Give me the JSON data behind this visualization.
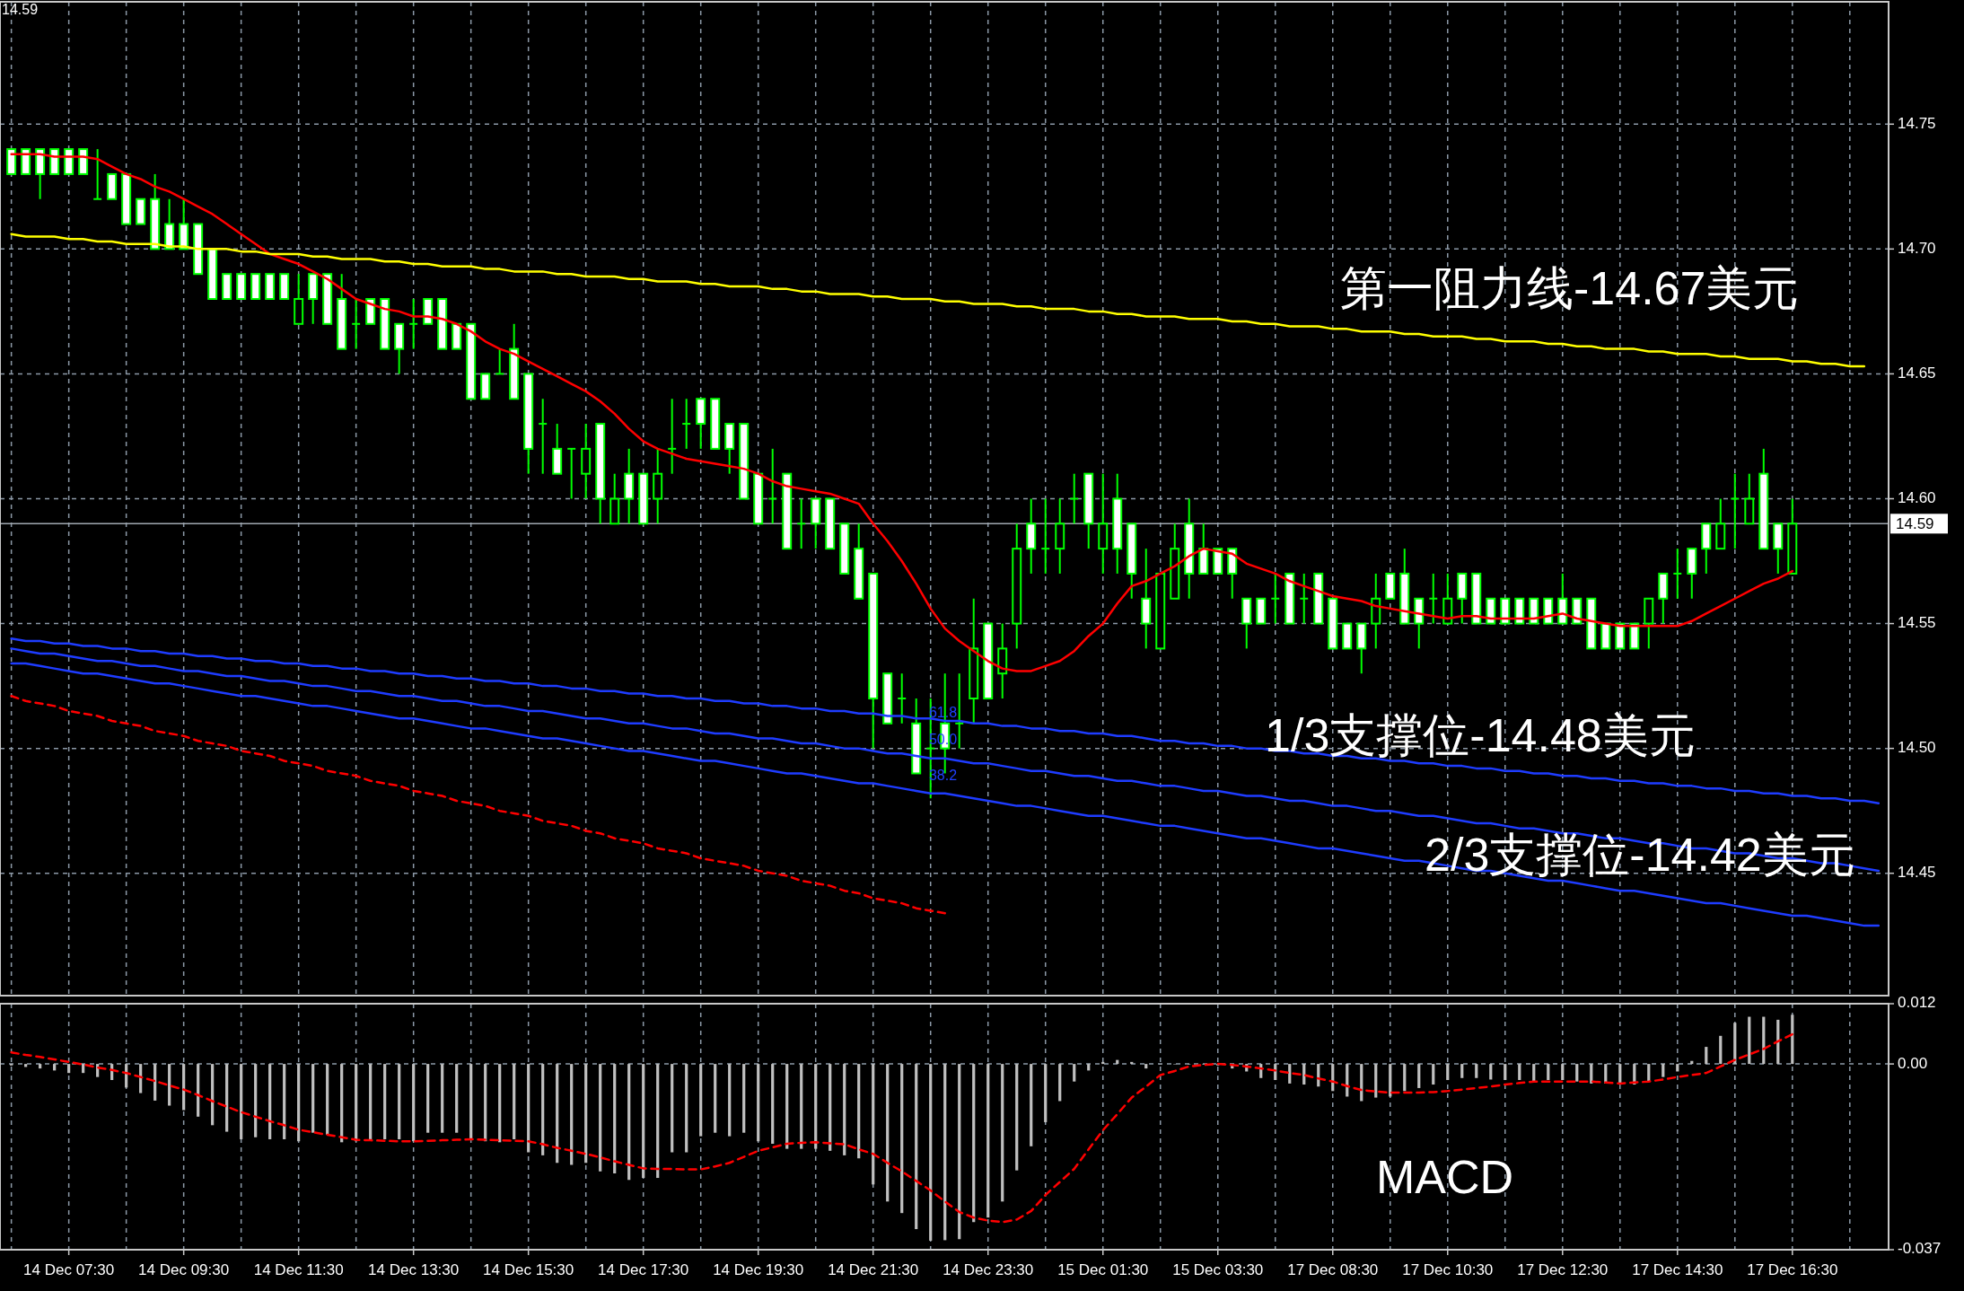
{
  "chart_data": [
    {
      "type": "candlestick",
      "title": "14.59",
      "color": "#00ff00",
      "categories": [
        null,
        null,
        null,
        null,
        null,
        null,
        null,
        null,
        null,
        null,
        null,
        null,
        null,
        null,
        null,
        null,
        null,
        null,
        null,
        null,
        null,
        null,
        null,
        null,
        null,
        null,
        null,
        null,
        null,
        null,
        null,
        null,
        null,
        null,
        null,
        null,
        null,
        null,
        null,
        null,
        null,
        null,
        null,
        null,
        null,
        null,
        null,
        null,
        null,
        null,
        null,
        null,
        null,
        null,
        null,
        null,
        null,
        null,
        null,
        null,
        null,
        null,
        null,
        null,
        null,
        null,
        null,
        null,
        null,
        null,
        null,
        null,
        null,
        null,
        null,
        null,
        null,
        null,
        null,
        null,
        null,
        null,
        null,
        null,
        null,
        null,
        null,
        null,
        null,
        null,
        null,
        null,
        null,
        null,
        null,
        null,
        null,
        null,
        null,
        null,
        null,
        null,
        null,
        null,
        null,
        null,
        null,
        null,
        null,
        null,
        null,
        null,
        null,
        null,
        null,
        null,
        null,
        null,
        null,
        null,
        null,
        null,
        null,
        null,
        null,
        null,
        null,
        null,
        null,
        null,
        null
      ],
      "ohlc": [
        [
          14.74,
          14.74,
          14.73,
          14.73
        ],
        [
          14.74,
          14.74,
          14.73,
          14.73
        ],
        [
          14.74,
          14.74,
          14.72,
          14.73
        ],
        [
          14.74,
          14.74,
          14.73,
          14.73
        ],
        [
          14.74,
          14.74,
          14.73,
          14.73
        ],
        [
          14.74,
          14.74,
          14.73,
          14.73
        ],
        [
          14.72,
          14.74,
          14.72,
          14.72
        ],
        [
          14.73,
          14.73,
          14.72,
          14.72
        ],
        [
          14.73,
          14.73,
          14.71,
          14.71
        ],
        [
          14.72,
          14.72,
          14.71,
          14.71
        ],
        [
          14.72,
          14.73,
          14.7,
          14.7
        ],
        [
          14.71,
          14.72,
          14.7,
          14.7
        ],
        [
          14.71,
          14.72,
          14.7,
          14.7
        ],
        [
          14.71,
          14.71,
          14.69,
          14.69
        ],
        [
          14.7,
          14.7,
          14.68,
          14.68
        ],
        [
          14.69,
          14.69,
          14.68,
          14.68
        ],
        [
          14.69,
          14.69,
          14.68,
          14.68
        ],
        [
          14.69,
          14.69,
          14.68,
          14.68
        ],
        [
          14.69,
          14.69,
          14.68,
          14.68
        ],
        [
          14.69,
          14.69,
          14.68,
          14.68
        ],
        [
          14.67,
          14.69,
          14.67,
          14.68
        ],
        [
          14.69,
          14.69,
          14.67,
          14.68
        ],
        [
          14.69,
          14.69,
          14.67,
          14.67
        ],
        [
          14.68,
          14.69,
          14.66,
          14.66
        ],
        [
          14.67,
          14.68,
          14.66,
          14.67
        ],
        [
          14.68,
          14.68,
          14.67,
          14.67
        ],
        [
          14.68,
          14.68,
          14.66,
          14.66
        ],
        [
          14.67,
          14.67,
          14.65,
          14.66
        ],
        [
          14.67,
          14.68,
          14.66,
          14.67
        ],
        [
          14.68,
          14.68,
          14.67,
          14.67
        ],
        [
          14.68,
          14.68,
          14.66,
          14.66
        ],
        [
          14.67,
          14.67,
          14.66,
          14.66
        ],
        [
          14.67,
          14.67,
          14.64,
          14.64
        ],
        [
          14.65,
          14.65,
          14.64,
          14.64
        ],
        [
          14.65,
          14.66,
          14.65,
          14.65
        ],
        [
          14.66,
          14.67,
          14.64,
          14.64
        ],
        [
          14.65,
          14.65,
          14.61,
          14.62
        ],
        [
          14.63,
          14.64,
          14.61,
          14.63
        ],
        [
          14.62,
          14.63,
          14.61,
          14.61
        ],
        [
          14.62,
          14.62,
          14.6,
          14.62
        ],
        [
          14.61,
          14.63,
          14.6,
          14.62
        ],
        [
          14.63,
          14.63,
          14.59,
          14.6
        ],
        [
          14.59,
          14.61,
          14.59,
          14.6
        ],
        [
          14.61,
          14.62,
          14.59,
          14.6
        ],
        [
          14.61,
          14.61,
          14.59,
          14.59
        ],
        [
          14.6,
          14.62,
          14.59,
          14.61
        ],
        [
          14.62,
          14.64,
          14.61,
          14.62
        ],
        [
          14.63,
          14.64,
          14.62,
          14.63
        ],
        [
          14.64,
          14.64,
          14.62,
          14.63
        ],
        [
          14.64,
          14.64,
          14.62,
          14.62
        ],
        [
          14.63,
          14.63,
          14.61,
          14.62
        ],
        [
          14.63,
          14.63,
          14.6,
          14.6
        ],
        [
          14.61,
          14.61,
          14.59,
          14.59
        ],
        [
          14.6,
          14.62,
          14.59,
          14.6
        ],
        [
          14.61,
          14.61,
          14.58,
          14.58
        ],
        [
          14.59,
          14.6,
          14.58,
          14.59
        ],
        [
          14.6,
          14.6,
          14.58,
          14.59
        ],
        [
          14.6,
          14.6,
          14.58,
          14.58
        ],
        [
          14.59,
          14.59,
          14.57,
          14.57
        ],
        [
          14.58,
          14.59,
          14.56,
          14.56
        ],
        [
          14.57,
          14.57,
          14.5,
          14.52
        ],
        [
          14.53,
          14.53,
          14.51,
          14.51
        ],
        [
          14.52,
          14.53,
          14.51,
          14.52
        ],
        [
          14.51,
          14.52,
          14.49,
          14.49
        ],
        [
          14.5,
          14.52,
          14.48,
          14.5
        ],
        [
          14.51,
          14.53,
          14.49,
          14.5
        ],
        [
          14.51,
          14.53,
          14.5,
          14.51
        ],
        [
          14.52,
          14.56,
          14.51,
          14.54
        ],
        [
          14.55,
          14.55,
          14.52,
          14.52
        ],
        [
          14.53,
          14.55,
          14.52,
          14.54
        ],
        [
          14.55,
          14.59,
          14.54,
          14.58
        ],
        [
          14.59,
          14.6,
          14.57,
          14.58
        ],
        [
          14.58,
          14.6,
          14.57,
          14.58
        ],
        [
          14.58,
          14.6,
          14.57,
          14.59
        ],
        [
          14.6,
          14.61,
          14.59,
          14.6
        ],
        [
          14.61,
          14.61,
          14.58,
          14.59
        ],
        [
          14.58,
          14.61,
          14.57,
          14.59
        ],
        [
          14.6,
          14.61,
          14.57,
          14.58
        ],
        [
          14.59,
          14.59,
          14.56,
          14.57
        ],
        [
          14.56,
          14.58,
          14.54,
          14.55
        ],
        [
          14.54,
          14.57,
          14.54,
          14.57
        ],
        [
          14.56,
          14.59,
          14.56,
          14.58
        ],
        [
          14.59,
          14.6,
          14.56,
          14.57
        ],
        [
          14.58,
          14.59,
          14.57,
          14.57
        ],
        [
          14.58,
          14.58,
          14.57,
          14.57
        ],
        [
          14.58,
          14.58,
          14.56,
          14.57
        ],
        [
          14.56,
          14.56,
          14.54,
          14.55
        ],
        [
          14.56,
          14.56,
          14.55,
          14.55
        ],
        [
          14.56,
          14.57,
          14.55,
          14.56
        ],
        [
          14.57,
          14.57,
          14.55,
          14.55
        ],
        [
          14.56,
          14.57,
          14.55,
          14.56
        ],
        [
          14.57,
          14.57,
          14.55,
          14.55
        ],
        [
          14.56,
          14.56,
          14.54,
          14.54
        ],
        [
          14.55,
          14.55,
          14.54,
          14.54
        ],
        [
          14.55,
          14.55,
          14.53,
          14.54
        ],
        [
          14.55,
          14.57,
          14.54,
          14.56
        ],
        [
          14.57,
          14.57,
          14.56,
          14.56
        ],
        [
          14.57,
          14.58,
          14.55,
          14.55
        ],
        [
          14.56,
          14.56,
          14.54,
          14.55
        ],
        [
          14.56,
          14.57,
          14.55,
          14.56
        ],
        [
          14.55,
          14.57,
          14.55,
          14.56
        ],
        [
          14.57,
          14.57,
          14.55,
          14.56
        ],
        [
          14.57,
          14.57,
          14.55,
          14.55
        ],
        [
          14.56,
          14.56,
          14.55,
          14.55
        ],
        [
          14.56,
          14.56,
          14.55,
          14.55
        ],
        [
          14.56,
          14.56,
          14.55,
          14.55
        ],
        [
          14.56,
          14.56,
          14.55,
          14.55
        ],
        [
          14.56,
          14.56,
          14.55,
          14.55
        ],
        [
          14.56,
          14.57,
          14.55,
          14.55
        ],
        [
          14.56,
          14.56,
          14.55,
          14.55
        ],
        [
          14.56,
          14.56,
          14.54,
          14.54
        ],
        [
          14.55,
          14.55,
          14.54,
          14.54
        ],
        [
          14.55,
          14.55,
          14.54,
          14.54
        ],
        [
          14.55,
          14.55,
          14.54,
          14.54
        ],
        [
          14.55,
          14.56,
          14.54,
          14.56
        ],
        [
          14.57,
          14.57,
          14.55,
          14.56
        ],
        [
          14.57,
          14.58,
          14.56,
          14.57
        ],
        [
          14.58,
          14.58,
          14.56,
          14.57
        ],
        [
          14.59,
          14.59,
          14.57,
          14.58
        ],
        [
          14.58,
          14.6,
          14.58,
          14.59
        ],
        [
          14.6,
          14.61,
          14.58,
          14.6
        ],
        [
          14.59,
          14.61,
          14.59,
          14.6
        ],
        [
          14.61,
          14.62,
          14.58,
          14.58
        ],
        [
          14.59,
          14.59,
          14.57,
          14.58
        ],
        [
          14.57,
          14.6,
          14.57,
          14.59
        ],
        null,
        null,
        null,
        null,
        null,
        null
      ],
      "series": [
        {
          "type": "line",
          "color": "#ff0000",
          "values": [
            14.738,
            14.738,
            14.738,
            14.737,
            14.737,
            14.737,
            14.736,
            14.733,
            14.73,
            14.728,
            14.725,
            14.723,
            14.72,
            14.717,
            14.714,
            14.71,
            14.706,
            14.702,
            14.698,
            14.696,
            14.694,
            14.691,
            14.688,
            14.684,
            14.68,
            14.678,
            14.676,
            14.675,
            14.673,
            14.673,
            14.672,
            14.67,
            14.667,
            14.663,
            14.66,
            14.658,
            14.655,
            14.652,
            14.649,
            14.646,
            14.643,
            14.639,
            14.634,
            14.628,
            14.623,
            14.62,
            14.618,
            14.616,
            14.615,
            14.614,
            14.613,
            14.612,
            14.61,
            14.607,
            14.605,
            14.604,
            14.603,
            14.602,
            14.6,
            14.598,
            14.59,
            14.583,
            14.575,
            14.566,
            14.556,
            14.548,
            14.543,
            14.539,
            14.535,
            14.532,
            14.531,
            14.531,
            14.533,
            14.535,
            14.539,
            14.545,
            14.55,
            14.558,
            14.565,
            14.567,
            14.57,
            14.573,
            14.577,
            14.58,
            14.579,
            14.578,
            14.574,
            14.572,
            14.57,
            14.567,
            14.565,
            14.563,
            14.561,
            14.56,
            14.559,
            14.557,
            14.556,
            14.555,
            14.554,
            14.553,
            14.552,
            14.553,
            14.553,
            14.552,
            14.552,
            14.552,
            14.552,
            14.553,
            14.554,
            14.552,
            14.551,
            14.55,
            14.549,
            14.549,
            14.549,
            14.549,
            14.549,
            14.551,
            14.554,
            14.557,
            14.56,
            14.563,
            14.566,
            14.568,
            14.571,
            null,
            null,
            null,
            null,
            null,
            null
          ]
        },
        {
          "type": "line",
          "color": "#ffff00",
          "values": [
            14.706,
            14.705,
            14.705,
            14.705,
            14.704,
            14.704,
            14.703,
            14.703,
            14.702,
            14.702,
            14.702,
            14.701,
            14.701,
            14.7,
            14.7,
            14.7,
            14.699,
            14.699,
            14.698,
            14.698,
            14.698,
            14.697,
            14.697,
            14.696,
            14.696,
            14.696,
            14.695,
            14.695,
            14.694,
            14.694,
            14.693,
            14.693,
            14.693,
            14.692,
            14.692,
            14.691,
            14.691,
            14.691,
            14.69,
            14.69,
            14.689,
            14.689,
            14.689,
            14.688,
            14.688,
            14.687,
            14.687,
            14.687,
            14.686,
            14.686,
            14.685,
            14.685,
            14.685,
            14.684,
            14.684,
            14.683,
            14.683,
            14.682,
            14.682,
            14.682,
            14.681,
            14.681,
            14.68,
            14.68,
            14.68,
            14.679,
            14.679,
            14.678,
            14.678,
            14.678,
            14.677,
            14.677,
            14.676,
            14.676,
            14.676,
            14.675,
            14.675,
            14.674,
            14.674,
            14.673,
            14.673,
            14.673,
            14.672,
            14.672,
            14.672,
            14.671,
            14.671,
            14.67,
            14.67,
            14.669,
            14.669,
            14.669,
            14.668,
            14.668,
            14.667,
            14.667,
            14.667,
            14.666,
            14.666,
            14.665,
            14.665,
            14.665,
            14.664,
            14.664,
            14.663,
            14.663,
            14.663,
            14.662,
            14.662,
            14.661,
            14.661,
            14.66,
            14.66,
            14.66,
            14.659,
            14.659,
            14.658,
            14.658,
            14.658,
            14.657,
            14.657,
            14.656,
            14.656,
            14.656,
            14.655,
            14.655,
            14.654,
            14.654,
            14.653,
            14.653,
            null
          ]
        },
        {
          "type": "line",
          "color": "#1e3cff",
          "values": [
            14.544,
            14.543,
            14.543,
            14.542,
            14.542,
            14.541,
            14.541,
            14.54,
            14.54,
            14.539,
            14.539,
            14.538,
            14.538,
            14.537,
            14.537,
            14.536,
            14.536,
            14.535,
            14.535,
            14.534,
            14.534,
            14.533,
            14.533,
            14.532,
            14.532,
            14.531,
            14.531,
            14.53,
            14.53,
            14.529,
            14.529,
            14.528,
            14.528,
            14.527,
            14.527,
            14.526,
            14.526,
            14.525,
            14.525,
            14.524,
            14.524,
            14.523,
            14.523,
            14.522,
            14.522,
            14.521,
            14.521,
            14.52,
            14.52,
            14.519,
            14.519,
            14.518,
            14.518,
            14.517,
            14.517,
            14.516,
            14.516,
            14.515,
            14.515,
            14.514,
            14.514,
            14.513,
            14.513,
            14.512,
            14.512,
            14.511,
            14.511,
            14.51,
            14.51,
            14.509,
            14.509,
            14.508,
            14.508,
            14.507,
            14.507,
            14.506,
            14.506,
            14.505,
            14.505,
            14.504,
            14.503,
            14.503,
            14.502,
            14.502,
            14.501,
            14.501,
            14.5,
            14.5,
            14.499,
            14.499,
            14.498,
            14.498,
            14.497,
            14.497,
            14.496,
            14.496,
            14.495,
            14.495,
            14.494,
            14.494,
            14.493,
            14.493,
            14.492,
            14.492,
            14.491,
            14.491,
            14.49,
            14.49,
            14.489,
            14.489,
            14.488,
            14.488,
            14.487,
            14.487,
            14.486,
            14.486,
            14.485,
            14.485,
            14.484,
            14.484,
            14.483,
            14.483,
            14.482,
            14.482,
            14.481,
            14.481,
            14.48,
            14.48,
            14.479,
            14.479,
            14.478
          ]
        },
        {
          "type": "line",
          "color": "#1e3cff",
          "values": [
            14.54,
            14.539,
            14.538,
            14.538,
            14.537,
            14.536,
            14.535,
            14.535,
            14.534,
            14.533,
            14.533,
            14.532,
            14.531,
            14.531,
            14.53,
            14.529,
            14.529,
            14.528,
            14.527,
            14.527,
            14.526,
            14.525,
            14.525,
            14.524,
            14.523,
            14.523,
            14.522,
            14.521,
            14.521,
            14.52,
            14.519,
            14.519,
            14.518,
            14.517,
            14.517,
            14.516,
            14.515,
            14.515,
            14.514,
            14.513,
            14.512,
            14.512,
            14.511,
            14.51,
            14.51,
            14.509,
            14.508,
            14.508,
            14.507,
            14.506,
            14.506,
            14.505,
            14.504,
            14.504,
            14.503,
            14.502,
            14.502,
            14.501,
            14.5,
            14.5,
            14.499,
            14.498,
            14.498,
            14.497,
            14.496,
            14.496,
            14.495,
            14.494,
            14.494,
            14.493,
            14.492,
            14.491,
            14.491,
            14.49,
            14.489,
            14.489,
            14.488,
            14.487,
            14.487,
            14.486,
            14.485,
            14.485,
            14.484,
            14.483,
            14.483,
            14.482,
            14.481,
            14.481,
            14.48,
            14.479,
            14.479,
            14.478,
            14.477,
            14.477,
            14.476,
            14.475,
            14.475,
            14.474,
            14.473,
            14.473,
            14.472,
            14.471,
            14.47,
            14.47,
            14.469,
            14.468,
            14.468,
            14.467,
            14.466,
            14.466,
            14.465,
            14.464,
            14.464,
            14.463,
            14.462,
            14.462,
            14.461,
            14.46,
            14.46,
            14.459,
            14.458,
            14.458,
            14.457,
            14.456,
            14.456,
            14.455,
            14.454,
            14.454,
            14.453,
            14.452,
            14.451
          ]
        },
        {
          "type": "line",
          "color": "#1e3cff",
          "values": [
            14.534,
            14.534,
            14.533,
            14.532,
            14.531,
            14.53,
            14.53,
            14.529,
            14.528,
            14.527,
            14.526,
            14.526,
            14.525,
            14.524,
            14.523,
            14.522,
            14.521,
            14.521,
            14.52,
            14.519,
            14.518,
            14.517,
            14.517,
            14.516,
            14.515,
            14.514,
            14.513,
            14.512,
            14.512,
            14.511,
            14.51,
            14.509,
            14.508,
            14.508,
            14.507,
            14.506,
            14.505,
            14.504,
            14.504,
            14.503,
            14.502,
            14.501,
            14.5,
            14.499,
            14.499,
            14.498,
            14.497,
            14.496,
            14.495,
            14.495,
            14.494,
            14.493,
            14.492,
            14.491,
            14.49,
            14.49,
            14.489,
            14.488,
            14.487,
            14.486,
            14.486,
            14.485,
            14.484,
            14.483,
            14.482,
            14.482,
            14.481,
            14.48,
            14.479,
            14.478,
            14.477,
            14.477,
            14.476,
            14.475,
            14.474,
            14.473,
            14.473,
            14.472,
            14.471,
            14.47,
            14.469,
            14.469,
            14.468,
            14.467,
            14.466,
            14.465,
            14.464,
            14.464,
            14.463,
            14.462,
            14.461,
            14.46,
            14.46,
            14.459,
            14.458,
            14.457,
            14.456,
            14.455,
            14.455,
            14.454,
            14.453,
            14.452,
            14.451,
            14.451,
            14.45,
            14.449,
            14.448,
            14.447,
            14.447,
            14.446,
            14.445,
            14.444,
            14.443,
            14.443,
            14.442,
            14.441,
            14.44,
            14.439,
            14.438,
            14.438,
            14.437,
            14.436,
            14.435,
            14.434,
            14.433,
            14.433,
            14.432,
            14.431,
            14.43,
            14.429,
            14.429
          ]
        },
        {
          "type": "line",
          "color": "#ff0000",
          "line_style": "dashed",
          "values": [
            14.521,
            14.519,
            14.518,
            14.517,
            14.515,
            14.514,
            14.513,
            14.511,
            14.51,
            14.509,
            14.507,
            14.506,
            14.505,
            14.503,
            14.502,
            14.501,
            14.499,
            14.498,
            14.497,
            14.495,
            14.494,
            14.493,
            14.491,
            14.49,
            14.489,
            14.487,
            14.486,
            14.485,
            14.483,
            14.482,
            14.481,
            14.479,
            14.478,
            14.477,
            14.475,
            14.474,
            14.473,
            14.471,
            14.47,
            14.469,
            14.467,
            14.466,
            14.464,
            14.463,
            14.462,
            14.46,
            14.459,
            14.458,
            14.456,
            14.455,
            14.454,
            14.453,
            14.451,
            14.45,
            14.449,
            14.447,
            14.446,
            14.445,
            14.443,
            14.442,
            14.44,
            14.439,
            14.438,
            14.436,
            14.435,
            14.434,
            null,
            null,
            null,
            null,
            null,
            null,
            null,
            null,
            null,
            null,
            null,
            null,
            null,
            null,
            null,
            null,
            null,
            null,
            null,
            null,
            null,
            null,
            null,
            null,
            null,
            null,
            null,
            null,
            null,
            null,
            null,
            null,
            null,
            null,
            null,
            null,
            null,
            null,
            null,
            null,
            null,
            null,
            null,
            null,
            null,
            null,
            null,
            null,
            null,
            null,
            null,
            null,
            null,
            null,
            null,
            null,
            null,
            null,
            null,
            null,
            null,
            null,
            null,
            null,
            null
          ]
        }
      ],
      "ref_lines": [
        {
          "axis": "y",
          "value": 14.59,
          "label": "14.59",
          "color": "#a0a8b0"
        }
      ],
      "annotations": [
        "第一阻力线-14.67美元",
        "1/3支撑位-14.48美元",
        "2/3支撑位-14.42美元",
        "61.8",
        "50.0",
        "38.2"
      ],
      "ylim": [
        14.401,
        14.799
      ],
      "yticks": [
        {
          "value": 14.45,
          "label": "14.45"
        },
        {
          "value": 14.5,
          "label": "14.50"
        },
        {
          "value": 14.55,
          "label": "14.55"
        },
        {
          "value": 14.6,
          "label": "14.60"
        },
        {
          "value": 14.65,
          "label": "14.65"
        },
        {
          "value": 14.7,
          "label": "14.70"
        },
        {
          "value": 14.75,
          "label": "14.75"
        }
      ],
      "grid": true,
      "tick_labels": "y"
    },
    {
      "type": "bar",
      "color": "#c0c0c0",
      "categories": [
        null,
        null,
        null,
        null,
        "14 Dec 07:30",
        null,
        null,
        null,
        null,
        null,
        null,
        null,
        "14 Dec 09:30",
        null,
        null,
        null,
        null,
        null,
        null,
        null,
        "14 Dec 11:30",
        null,
        null,
        null,
        null,
        null,
        null,
        null,
        "14 Dec 13:30",
        null,
        null,
        null,
        null,
        null,
        null,
        null,
        "14 Dec 15:30",
        null,
        null,
        null,
        null,
        null,
        null,
        null,
        "14 Dec 17:30",
        null,
        null,
        null,
        null,
        null,
        null,
        null,
        "14 Dec 19:30",
        null,
        null,
        null,
        null,
        null,
        null,
        null,
        "14 Dec 21:30",
        null,
        null,
        null,
        null,
        null,
        null,
        null,
        "14 Dec 23:30",
        null,
        null,
        null,
        null,
        null,
        null,
        null,
        "15 Dec 01:30",
        null,
        null,
        null,
        null,
        null,
        null,
        null,
        "15 Dec 03:30",
        null,
        null,
        null,
        null,
        null,
        null,
        null,
        "17 Dec 08:30",
        null,
        null,
        null,
        null,
        null,
        null,
        null,
        "17 Dec 10:30",
        null,
        null,
        null,
        null,
        null,
        null,
        null,
        "17 Dec 12:30",
        null,
        null,
        null,
        null,
        null,
        null,
        null,
        "17 Dec 14:30",
        null,
        null,
        null,
        null,
        null,
        null,
        null,
        "17 Dec 16:30",
        null,
        null,
        null,
        null,
        null,
        null
      ],
      "values": [
        -0.0003,
        -0.0006,
        -0.0009,
        -0.0013,
        -0.0018,
        -0.0018,
        -0.0026,
        -0.0032,
        -0.0047,
        -0.0058,
        -0.0073,
        -0.0083,
        -0.0092,
        -0.0105,
        -0.0122,
        -0.0135,
        -0.015,
        -0.0146,
        -0.015,
        -0.015,
        -0.0154,
        -0.0137,
        -0.0141,
        -0.0156,
        -0.0154,
        -0.015,
        -0.015,
        -0.015,
        -0.0154,
        -0.0137,
        -0.0137,
        -0.0137,
        -0.015,
        -0.0154,
        -0.0156,
        -0.015,
        -0.0176,
        -0.0182,
        -0.0197,
        -0.0201,
        -0.0197,
        -0.0214,
        -0.0218,
        -0.0231,
        -0.0227,
        -0.0227,
        -0.0176,
        -0.0176,
        -0.0144,
        -0.0137,
        -0.0144,
        -0.0137,
        -0.0154,
        -0.0159,
        -0.0169,
        -0.0169,
        -0.0169,
        -0.0173,
        -0.0182,
        -0.0188,
        -0.024,
        -0.0274,
        -0.0297,
        -0.0329,
        -0.0352,
        -0.0351,
        -0.0349,
        -0.0315,
        -0.0306,
        -0.0274,
        -0.0212,
        -0.0164,
        -0.0116,
        -0.0074,
        -0.0035,
        -0.0013,
        0.0004,
        0.0008,
        0.0004,
        -0.0009,
        0,
        0,
        0,
        0,
        -0.0003,
        -0.0009,
        -0.0015,
        -0.0028,
        -0.0032,
        -0.0039,
        -0.0041,
        -0.0045,
        -0.0054,
        -0.0065,
        -0.0074,
        -0.0067,
        -0.0065,
        -0.0054,
        -0.0048,
        -0.0041,
        -0.0032,
        -0.0028,
        -0.0028,
        -0.0031,
        -0.0032,
        -0.0032,
        -0.0035,
        -0.0032,
        -0.0032,
        -0.0035,
        -0.0039,
        -0.0039,
        -0.0039,
        -0.0041,
        -0.0035,
        -0.0026,
        -0.0015,
        0.0006,
        0.0034,
        0.0056,
        0.0082,
        0.0094,
        0.0094,
        0.0088,
        0.0098,
        null,
        null,
        null,
        null,
        null,
        null
      ],
      "series": [
        {
          "type": "line",
          "color": "#ff0000",
          "line_style": "dashed",
          "values": [
            0.0023,
            0.0018,
            0.0014,
            0.0009,
            0.0004,
            -0.0001,
            -0.0007,
            -0.0012,
            -0.0018,
            -0.0026,
            -0.0034,
            -0.0043,
            -0.0051,
            -0.0062,
            -0.0074,
            -0.0085,
            -0.0096,
            -0.0105,
            -0.0114,
            -0.0122,
            -0.0131,
            -0.0136,
            -0.0141,
            -0.0146,
            -0.0151,
            -0.0152,
            -0.0153,
            -0.0154,
            -0.0154,
            -0.0153,
            -0.0152,
            -0.0151,
            -0.015,
            -0.0151,
            -0.0152,
            -0.0153,
            -0.0154,
            -0.016,
            -0.0167,
            -0.0173,
            -0.0179,
            -0.0186,
            -0.0194,
            -0.0201,
            -0.0208,
            -0.0209,
            -0.0209,
            -0.021,
            -0.021,
            -0.0204,
            -0.0197,
            -0.0185,
            -0.0173,
            -0.0166,
            -0.0159,
            -0.0157,
            -0.0156,
            -0.0158,
            -0.016,
            -0.017,
            -0.0179,
            -0.0197,
            -0.0214,
            -0.0233,
            -0.0252,
            -0.0274,
            -0.0295,
            -0.0306,
            -0.0312,
            -0.0315,
            -0.031,
            -0.0293,
            -0.0261,
            -0.0235,
            -0.0209,
            -0.017,
            -0.0132,
            -0.01,
            -0.0067,
            -0.0045,
            -0.0022,
            -0.0014,
            -0.0005,
            -0.0002,
            0,
            -0.0002,
            -0.0005,
            -0.0009,
            -0.0013,
            -0.0018,
            -0.0022,
            -0.0029,
            -0.0035,
            -0.0044,
            -0.0052,
            -0.0055,
            -0.0057,
            -0.0057,
            -0.0057,
            -0.0056,
            -0.0054,
            -0.0051,
            -0.0048,
            -0.0045,
            -0.0041,
            -0.0038,
            -0.0035,
            -0.0035,
            -0.0035,
            -0.0035,
            -0.0035,
            -0.0037,
            -0.0039,
            -0.0037,
            -0.0035,
            -0.0031,
            -0.0026,
            -0.0022,
            -0.0018,
            -0.0005,
            0.0008,
            0.0019,
            0.003,
            0.0045,
            0.0059,
            null,
            null,
            null,
            null,
            null,
            null
          ]
        }
      ],
      "annotations": [
        "MACD"
      ],
      "ylim": [
        -0.037,
        0.012
      ],
      "yticks": [
        {
          "value": -0.037,
          "label": "-0.037"
        },
        {
          "value": 0,
          "label": "0.00"
        },
        {
          "value": 0.012,
          "label": "0.012"
        }
      ],
      "grid": true
    }
  ]
}
